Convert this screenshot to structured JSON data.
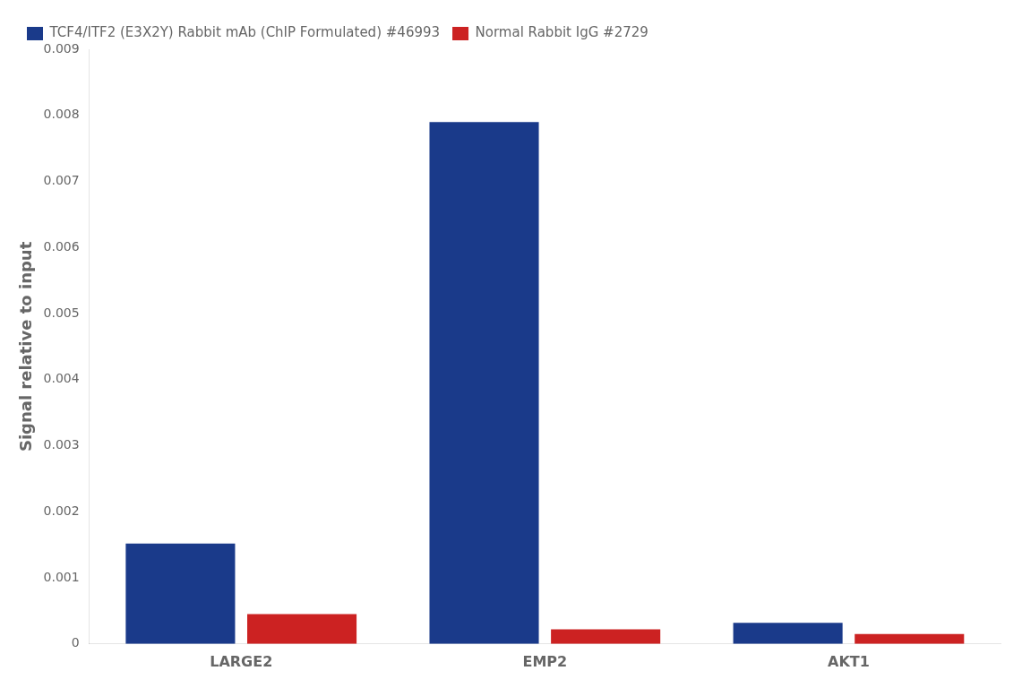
{
  "chart_data": {
    "type": "bar",
    "categories": [
      "LARGE2",
      "EMP2",
      "AKT1"
    ],
    "series": [
      {
        "name": "TCF4/ITF2 (E3X2Y) Rabbit mAb (ChIP Formulated) #46993",
        "color": "#1a3a8a",
        "values": [
          0.00152,
          0.0079,
          0.00032
        ]
      },
      {
        "name": "Normal Rabbit IgG #2729",
        "color": "#cc2222",
        "values": [
          0.00045,
          0.00022,
          0.00015
        ]
      }
    ],
    "ylabel": "Signal relative to input",
    "ylim": [
      0,
      0.009
    ],
    "yticks": [
      0,
      0.001,
      0.002,
      0.003,
      0.004,
      0.005,
      0.006,
      0.007,
      0.008,
      0.009
    ],
    "grid": false,
    "legend": "top-left"
  }
}
